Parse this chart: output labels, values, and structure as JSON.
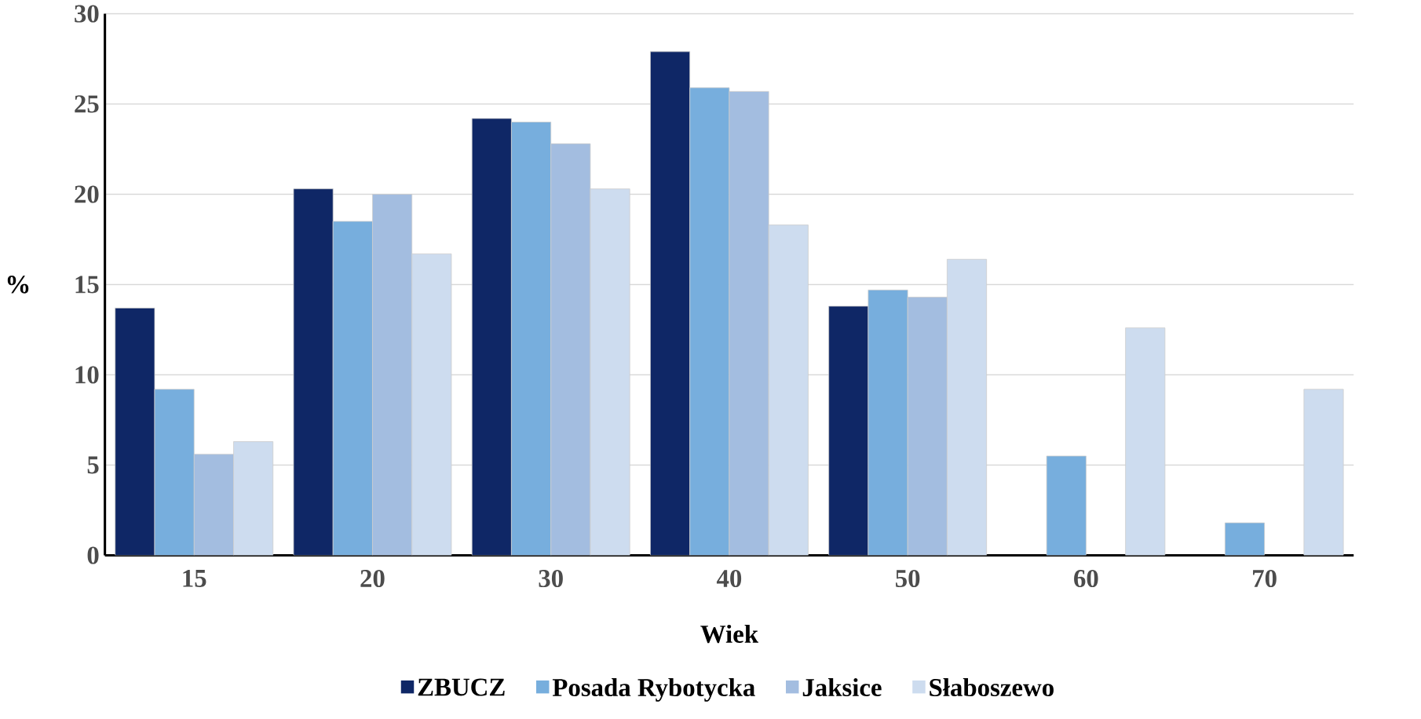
{
  "chart_data": {
    "type": "bar",
    "xlabel": "Wiek",
    "ylabel": "%",
    "categories": [
      "15",
      "20",
      "30",
      "40",
      "50",
      "60",
      "70"
    ],
    "series": [
      {
        "name": "ZBUCZ",
        "color": "#0f2766",
        "values": [
          13.7,
          20.3,
          24.2,
          27.9,
          13.8,
          null,
          null
        ]
      },
      {
        "name": "Posada Rybotycka",
        "color": "#77aedd",
        "values": [
          9.2,
          18.5,
          24.0,
          25.9,
          14.7,
          5.5,
          1.8
        ]
      },
      {
        "name": "Jaksice",
        "color": "#a3bde0",
        "values": [
          5.6,
          20.0,
          22.8,
          25.7,
          14.3,
          null,
          null
        ]
      },
      {
        "name": "Słaboszewo",
        "color": "#cddcef",
        "values": [
          6.3,
          16.7,
          20.3,
          18.3,
          16.4,
          12.6,
          9.2
        ]
      }
    ],
    "ylim": [
      0,
      30
    ],
    "yticks": [
      0,
      5,
      10,
      15,
      20,
      25,
      30
    ],
    "grid": "y",
    "legend": "bottom"
  }
}
